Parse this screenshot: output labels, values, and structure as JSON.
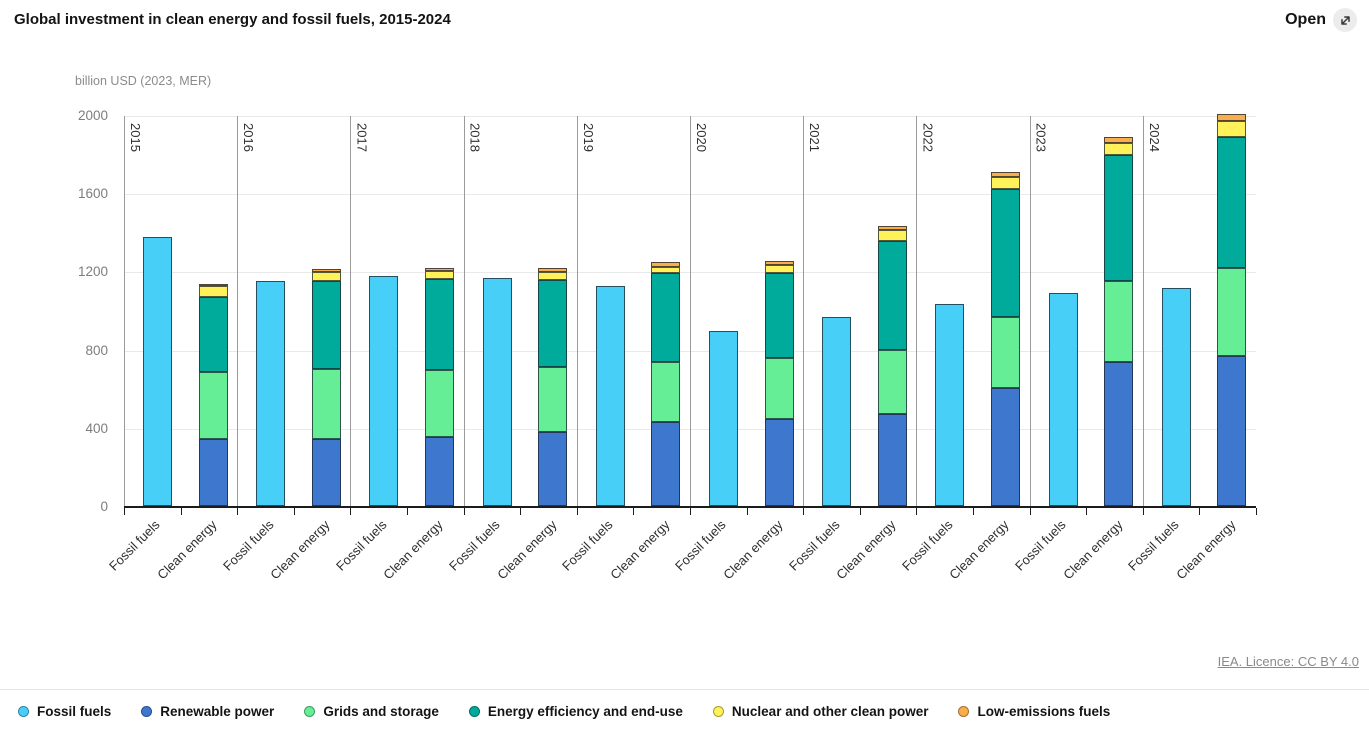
{
  "header": {
    "title": "Global investment in clean energy and fossil fuels, 2015-2024",
    "open_label": "Open",
    "open_icon": "expand-diagonal-arrow-icon"
  },
  "axis": {
    "unit_label": "billion USD (2023, MER)"
  },
  "footer": {
    "license_link": "IEA. Licence: CC BY 4.0"
  },
  "legend": [
    {
      "label": "Fossil fuels",
      "color": "#47CFF8"
    },
    {
      "label": "Renewable power",
      "color": "#3D78CE"
    },
    {
      "label": "Grids and storage",
      "color": "#66EE96"
    },
    {
      "label": "Energy efficiency and end-use",
      "color": "#00AB9B"
    },
    {
      "label": "Nuclear and other clean power",
      "color": "#FFF15A"
    },
    {
      "label": "Low-emissions fuels",
      "color": "#F9AD4B"
    }
  ],
  "chart_data": {
    "type": "bar",
    "stacked": true,
    "title": "Global investment in clean energy and fossil fuels, 2015-2024",
    "ylabel": "billion USD (2023, MER)",
    "ylim": [
      0,
      2000
    ],
    "yticks": [
      0,
      400,
      800,
      1200,
      1600,
      2000
    ],
    "grid": "horizontal",
    "legend_position": "bottom",
    "groups": [
      "2015",
      "2016",
      "2017",
      "2018",
      "2019",
      "2020",
      "2021",
      "2022",
      "2023",
      "2024"
    ],
    "bars_per_group": [
      "Fossil fuels",
      "Clean energy"
    ],
    "series": [
      {
        "name": "Fossil fuels",
        "bar": "Fossil fuels",
        "color": "#47CFF8",
        "values": [
          1375,
          1150,
          1178,
          1168,
          1125,
          896,
          965,
          1032,
          1090,
          1116
        ]
      },
      {
        "name": "Renewable power",
        "bar": "Clean energy",
        "color": "#3D78CE",
        "values": [
          345,
          345,
          352,
          380,
          430,
          446,
          472,
          603,
          737,
          768
        ]
      },
      {
        "name": "Grids and storage",
        "bar": "Clean energy",
        "color": "#66EE96",
        "values": [
          340,
          355,
          345,
          330,
          305,
          310,
          325,
          364,
          413,
          451
        ]
      },
      {
        "name": "Energy efficiency and end-use",
        "bar": "Clean energy",
        "color": "#00AB9B",
        "values": [
          385,
          450,
          462,
          445,
          456,
          436,
          558,
          655,
          643,
          668
        ]
      },
      {
        "name": "Nuclear and other clean power",
        "bar": "Clean energy",
        "color": "#FFF15A",
        "values": [
          55,
          45,
          42,
          43,
          32,
          40,
          55,
          60,
          63,
          80
        ]
      },
      {
        "name": "Low-emissions fuels",
        "bar": "Clean energy",
        "color": "#F9AD4B",
        "values": [
          8,
          18,
          18,
          20,
          25,
          21,
          20,
          26,
          30,
          38
        ]
      }
    ],
    "clean_energy_totals": [
      1133,
      1213,
      1219,
      1218,
      1248,
      1253,
      1430,
      1708,
      1886,
      2005
    ]
  }
}
